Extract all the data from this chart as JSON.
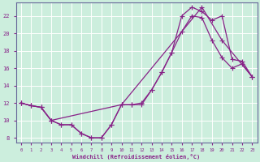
{
  "xlabel": "Windchill (Refroidissement éolien,°C)",
  "background_color": "#cceedd",
  "grid_color": "#aaddcc",
  "line_color": "#882288",
  "xlim": [
    -0.5,
    23.5
  ],
  "ylim": [
    7.5,
    23.5
  ],
  "yticks": [
    8,
    10,
    12,
    14,
    16,
    18,
    20,
    22
  ],
  "xticks": [
    0,
    1,
    2,
    3,
    4,
    5,
    6,
    7,
    8,
    9,
    10,
    11,
    12,
    13,
    14,
    15,
    16,
    17,
    18,
    19,
    20,
    21,
    22,
    23
  ],
  "line1_x": [
    0,
    1,
    2,
    3,
    4,
    5,
    6,
    7,
    8,
    9,
    10,
    11,
    12,
    13,
    14,
    15,
    16,
    17,
    18,
    19,
    20,
    21,
    22,
    23
  ],
  "line1_y": [
    12,
    11.7,
    11.5,
    10,
    9.5,
    9.5,
    8.5,
    8,
    8,
    9.5,
    11.8,
    11.8,
    11.8,
    13.5,
    15.5,
    17.8,
    20.2,
    22.0,
    21.8,
    19.2,
    17.2,
    16.0,
    16.5,
    15.0
  ],
  "line2_x": [
    0,
    1,
    2,
    3,
    4,
    5,
    6,
    7,
    8,
    9,
    10,
    11,
    12,
    13,
    14,
    15,
    16,
    17,
    18,
    19,
    20,
    21,
    22,
    23
  ],
  "line2_y": [
    12,
    11.7,
    11.5,
    10,
    9.5,
    9.5,
    8.5,
    8,
    8,
    9.5,
    11.8,
    11.8,
    12.0,
    13.5,
    15.5,
    17.8,
    22.0,
    23.0,
    22.5,
    21.5,
    22.0,
    17.0,
    16.8,
    15.0
  ],
  "line3_x": [
    0,
    1,
    2,
    3,
    10,
    18,
    20,
    23
  ],
  "line3_y": [
    12,
    11.7,
    11.5,
    10,
    11.8,
    23.0,
    19.2,
    15.0
  ]
}
